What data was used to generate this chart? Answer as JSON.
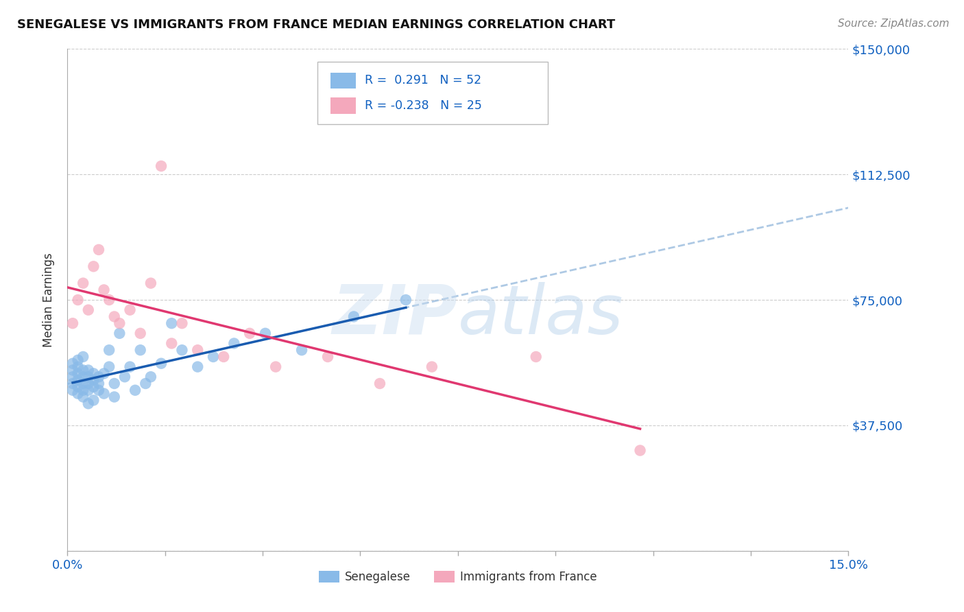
{
  "title": "SENEGALESE VS IMMIGRANTS FROM FRANCE MEDIAN EARNINGS CORRELATION CHART",
  "source_text": "Source: ZipAtlas.com",
  "ylabel": "Median Earnings",
  "xlim": [
    0.0,
    0.15
  ],
  "ylim": [
    0,
    150000
  ],
  "yticks": [
    0,
    37500,
    75000,
    112500,
    150000
  ],
  "ytick_labels": [
    "",
    "$37,500",
    "$75,000",
    "$112,500",
    "$150,000"
  ],
  "r_blue": "0.291",
  "n_blue": "52",
  "r_pink": "-0.238",
  "n_pink": "25",
  "blue_color": "#89BAE8",
  "pink_color": "#F4A8BC",
  "blue_line_color": "#1A5CB0",
  "pink_line_color": "#E03870",
  "dashed_line_color": "#A0C0E0",
  "blue_scatter_x": [
    0.001,
    0.001,
    0.001,
    0.001,
    0.001,
    0.002,
    0.002,
    0.002,
    0.002,
    0.002,
    0.002,
    0.003,
    0.003,
    0.003,
    0.003,
    0.003,
    0.003,
    0.004,
    0.004,
    0.004,
    0.004,
    0.004,
    0.005,
    0.005,
    0.005,
    0.005,
    0.006,
    0.006,
    0.006,
    0.007,
    0.007,
    0.008,
    0.008,
    0.009,
    0.009,
    0.01,
    0.011,
    0.012,
    0.013,
    0.014,
    0.015,
    0.016,
    0.018,
    0.02,
    0.022,
    0.025,
    0.028,
    0.032,
    0.038,
    0.045,
    0.055,
    0.065
  ],
  "blue_scatter_y": [
    50000,
    52000,
    54000,
    48000,
    56000,
    49000,
    51000,
    53000,
    55000,
    57000,
    47000,
    48000,
    50000,
    52000,
    54000,
    46000,
    58000,
    50000,
    52000,
    48000,
    54000,
    44000,
    49000,
    51000,
    53000,
    45000,
    50000,
    52000,
    48000,
    53000,
    47000,
    55000,
    60000,
    50000,
    46000,
    65000,
    52000,
    55000,
    48000,
    60000,
    50000,
    52000,
    56000,
    68000,
    60000,
    55000,
    58000,
    62000,
    65000,
    60000,
    70000,
    75000
  ],
  "pink_scatter_x": [
    0.001,
    0.002,
    0.003,
    0.004,
    0.005,
    0.006,
    0.007,
    0.008,
    0.009,
    0.01,
    0.012,
    0.014,
    0.016,
    0.018,
    0.02,
    0.022,
    0.025,
    0.03,
    0.035,
    0.04,
    0.05,
    0.06,
    0.07,
    0.09,
    0.11
  ],
  "pink_scatter_y": [
    68000,
    75000,
    80000,
    72000,
    85000,
    90000,
    78000,
    75000,
    70000,
    68000,
    72000,
    65000,
    80000,
    115000,
    62000,
    68000,
    60000,
    58000,
    65000,
    55000,
    58000,
    50000,
    55000,
    58000,
    30000
  ]
}
